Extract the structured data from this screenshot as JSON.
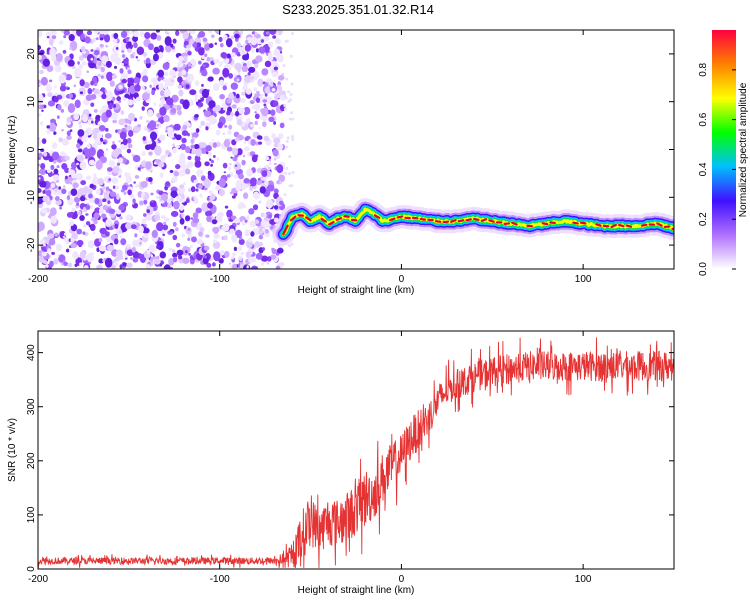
{
  "title": "S233.2025.351.01.32.R14",
  "chart_data": [
    {
      "type": "heatmap",
      "xlabel": "Height of straight line (km)",
      "ylabel": "Frequency (Hz)",
      "xlim": [
        -200,
        150
      ],
      "ylim": [
        -25,
        25
      ],
      "xticks": [
        "-200",
        "-100",
        "0",
        "100"
      ],
      "xtick_values": [
        -200,
        -100,
        0,
        100
      ],
      "yticks": [
        "20",
        "10",
        "0",
        "-10",
        "-20"
      ],
      "ytick_values": [
        20,
        10,
        0,
        -10,
        -20
      ],
      "noise_region_x": [
        -200,
        -65
      ],
      "signal_track": {
        "x": [
          -65,
          -60,
          -55,
          -50,
          -45,
          -40,
          -35,
          -30,
          -25,
          -20,
          -15,
          -10,
          -5,
          0,
          10,
          20,
          30,
          40,
          50,
          60,
          70,
          80,
          90,
          100,
          110,
          120,
          130,
          140,
          150
        ],
        "y": [
          -18,
          -14,
          -13.5,
          -15,
          -14,
          -15.5,
          -14.5,
          -14,
          -15,
          -12.5,
          -13.5,
          -15,
          -14.5,
          -14,
          -14.5,
          -15,
          -15,
          -14.5,
          -15,
          -15.5,
          -16,
          -15.5,
          -15,
          -15.5,
          -16,
          -16,
          -16,
          -15.5,
          -16.5
        ]
      },
      "colorbar": {
        "label": "Normalized spectral amplitude",
        "ticks": [
          "0.0",
          "0.2",
          "0.4",
          "0.6",
          "0.8"
        ],
        "tick_values": [
          0.0,
          0.2,
          0.4,
          0.6,
          0.8
        ],
        "range": [
          0.0,
          0.96
        ],
        "colors": [
          "#ffffff",
          "#b070ff",
          "#4010ff",
          "#00c0ff",
          "#00ff00",
          "#ffff00",
          "#ff8000",
          "#ff0040"
        ]
      }
    },
    {
      "type": "line",
      "xlabel": "Height of straight line (km)",
      "ylabel": "SNR (10 * v/v)",
      "xlim": [
        -200,
        150
      ],
      "ylim": [
        0,
        440
      ],
      "xticks": [
        "-200",
        "-100",
        "0",
        "100"
      ],
      "xtick_values": [
        -200,
        -100,
        0,
        100
      ],
      "yticks": [
        "0",
        "100",
        "200",
        "300",
        "400"
      ],
      "ytick_values": [
        0,
        100,
        200,
        300,
        400
      ],
      "line_color": "#e53333",
      "series_envelope": {
        "x": [
          -200,
          -150,
          -100,
          -70,
          -60,
          -55,
          -50,
          -45,
          -40,
          -35,
          -30,
          -25,
          -20,
          -15,
          -10,
          -5,
          0,
          5,
          10,
          15,
          20,
          25,
          30,
          40,
          50,
          60,
          70,
          80,
          100,
          120,
          150
        ],
        "mean": [
          15,
          15,
          15,
          15,
          20,
          60,
          90,
          70,
          90,
          85,
          95,
          110,
          130,
          140,
          170,
          190,
          210,
          240,
          260,
          280,
          310,
          330,
          340,
          355,
          365,
          370,
          375,
          375,
          375,
          375,
          375
        ],
        "spread": [
          8,
          8,
          8,
          8,
          25,
          60,
          60,
          50,
          60,
          55,
          60,
          60,
          70,
          60,
          60,
          55,
          50,
          50,
          45,
          40,
          40,
          35,
          35,
          35,
          35,
          35,
          35,
          35,
          35,
          35,
          35
        ]
      }
    }
  ]
}
